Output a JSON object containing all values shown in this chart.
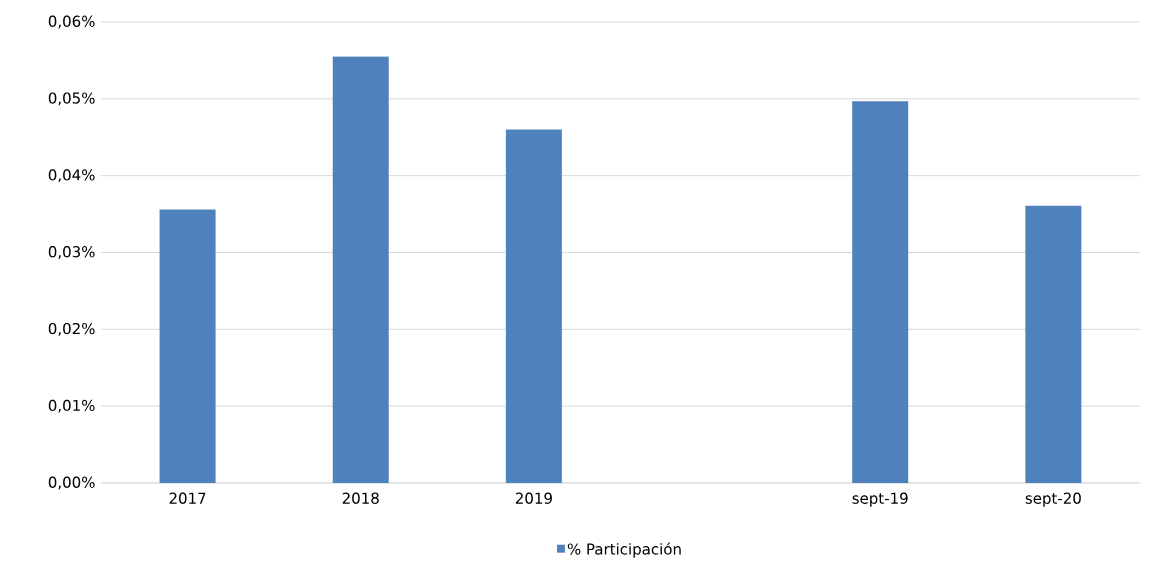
{
  "chart_data": {
    "type": "bar",
    "categories": [
      "2017",
      "2018",
      "2019",
      null,
      "sept-19",
      "sept-20"
    ],
    "series": [
      {
        "name": "% Participación",
        "color": "#4f81bd",
        "values": [
          0.0356,
          0.0555,
          0.046,
          null,
          0.0497,
          0.0361
        ]
      }
    ],
    "ylim": [
      0,
      0.06
    ],
    "yticks": [
      {
        "value": 0,
        "label": "0,00%"
      },
      {
        "value": 0.01,
        "label": "0,01%"
      },
      {
        "value": 0.02,
        "label": "0,02%"
      },
      {
        "value": 0.03,
        "label": "0,03%"
      },
      {
        "value": 0.04,
        "label": "0,04%"
      },
      {
        "value": 0.05,
        "label": "0,05%"
      },
      {
        "value": 0.06,
        "label": "0,06%"
      }
    ],
    "grid": "y",
    "legend": "bottom"
  }
}
